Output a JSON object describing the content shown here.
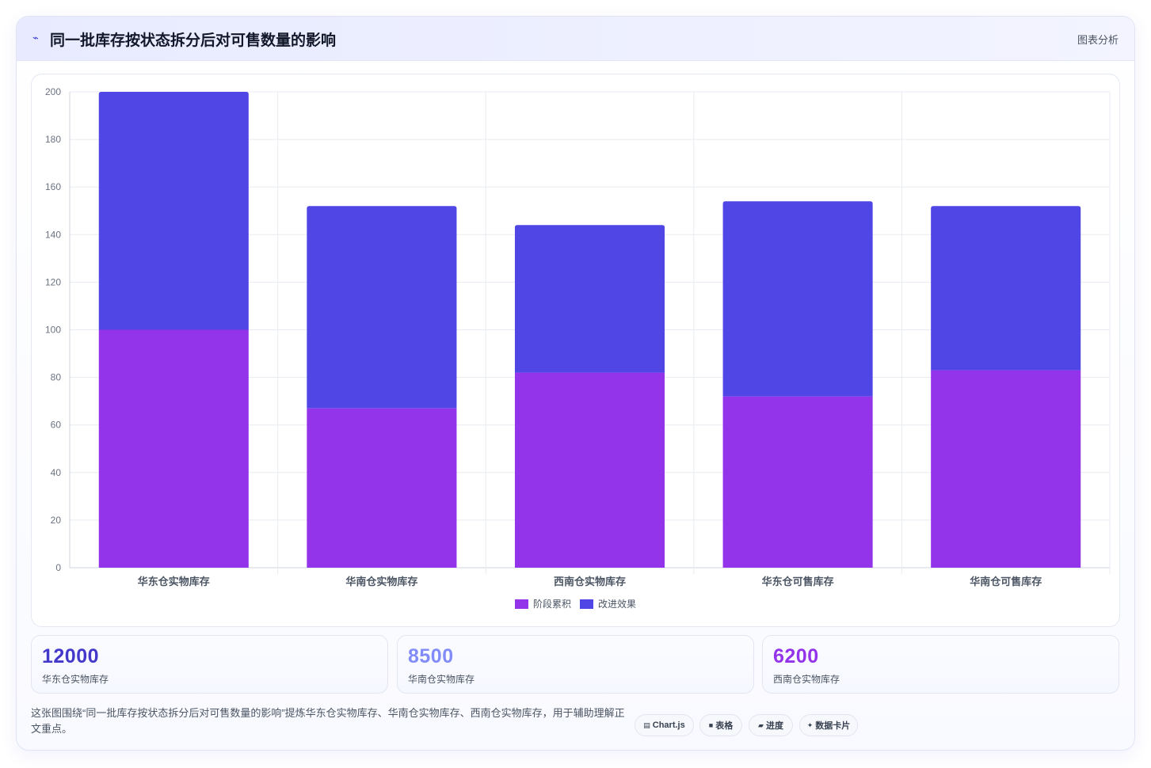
{
  "header": {
    "title": "同一批库存按状态拆分后对可售数量的影响",
    "link": "图表分析"
  },
  "chart_data": {
    "type": "bar",
    "stacked": true,
    "categories": [
      "华东仓实物库存",
      "华南仓实物库存",
      "西南仓实物库存",
      "华东仓可售库存",
      "华南仓可售库存"
    ],
    "series": [
      {
        "name": "阶段累积",
        "color": "#9333ea",
        "values": [
          100,
          67,
          82,
          72,
          83
        ]
      },
      {
        "name": "改进效果",
        "color": "#4f46e5",
        "values": [
          100,
          85,
          62,
          82,
          69
        ]
      }
    ],
    "ylim": [
      0,
      200
    ],
    "yticks": [
      0,
      20,
      40,
      60,
      80,
      100,
      120,
      140,
      160,
      180,
      200
    ],
    "grid": true,
    "legend": "bottom"
  },
  "stats": [
    {
      "value": "12000",
      "label": "华东仓实物库存",
      "color": "#4338ca"
    },
    {
      "value": "8500",
      "label": "华南仓实物库存",
      "color": "#818cf8"
    },
    {
      "value": "6200",
      "label": "西南仓实物库存",
      "color": "#9333ea"
    }
  ],
  "description": "这张图围绕“同一批库存按状态拆分后对可售数量的影响”提炼华东仓实物库存、华南仓实物库存、西南仓实物库存，用于辅助理解正文重点。",
  "chips": [
    {
      "icon": "chart-icon",
      "glyph": "▤",
      "label": "Chart.js"
    },
    {
      "icon": "table-icon",
      "glyph": "■",
      "label": "表格"
    },
    {
      "icon": "progress-icon",
      "glyph": "▰",
      "label": "进度"
    },
    {
      "icon": "sparkle-icon",
      "glyph": "✦",
      "label": "数据卡片"
    }
  ]
}
